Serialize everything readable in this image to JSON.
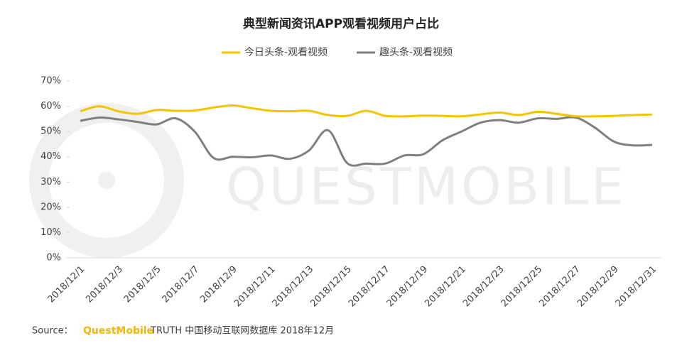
{
  "chart_data": {
    "type": "line",
    "title": "典型新闻资讯APP观看视频用户占比",
    "categories": [
      "2018/12/1",
      null,
      "2018/12/3",
      null,
      "2018/12/5",
      null,
      "2018/12/7",
      null,
      "2018/12/9",
      null,
      "2018/12/11",
      null,
      "2018/12/13",
      null,
      "2018/12/15",
      null,
      "2018/12/17",
      null,
      "2018/12/19",
      null,
      "2018/12/21",
      null,
      "2018/12/23",
      null,
      "2018/12/25",
      null,
      "2018/12/27",
      null,
      "2018/12/29",
      null,
      "2018/12/31"
    ],
    "series": [
      {
        "name": "今日头条-观看视频",
        "color": "#f5c400",
        "values": [
          58,
          60,
          58,
          57,
          58.5,
          58.2,
          58.3,
          59.5,
          60.3,
          59.2,
          58.2,
          58,
          58.2,
          56.5,
          56.2,
          58.2,
          56.2,
          56,
          56.3,
          56.2,
          56,
          56.8,
          57.5,
          56.5,
          57.8,
          57,
          56,
          56,
          56.2,
          56.5,
          56.7
        ]
      },
      {
        "name": "趣头条-观看视频",
        "color": "#7f7f7f",
        "values": [
          54.2,
          55.5,
          54.8,
          53.8,
          52.8,
          55.2,
          50,
          39.5,
          40,
          39.8,
          40.5,
          39.2,
          42.5,
          50.5,
          37.5,
          37.3,
          37.3,
          40.5,
          41,
          46.5,
          50,
          53.5,
          54.5,
          53.5,
          55.2,
          55,
          55.5,
          51.5,
          46,
          44.5,
          44.7
        ]
      }
    ],
    "ylim": [
      0,
      70
    ],
    "yticks": [
      {
        "value": 0,
        "label": "0%"
      },
      {
        "value": 10,
        "label": "10%"
      },
      {
        "value": 20,
        "label": "20%"
      },
      {
        "value": 30,
        "label": "30%"
      },
      {
        "value": 40,
        "label": "40%"
      },
      {
        "value": 50,
        "label": "50%"
      },
      {
        "value": 60,
        "label": "60%"
      },
      {
        "value": 70,
        "label": "70%"
      }
    ],
    "legend": "top",
    "watermark": "QUESTMOBILE",
    "source": {
      "label": "Source：",
      "brand": "QuestMobile",
      "text": "TRUTH 中国移动互联网数据库 2018年12月"
    }
  }
}
